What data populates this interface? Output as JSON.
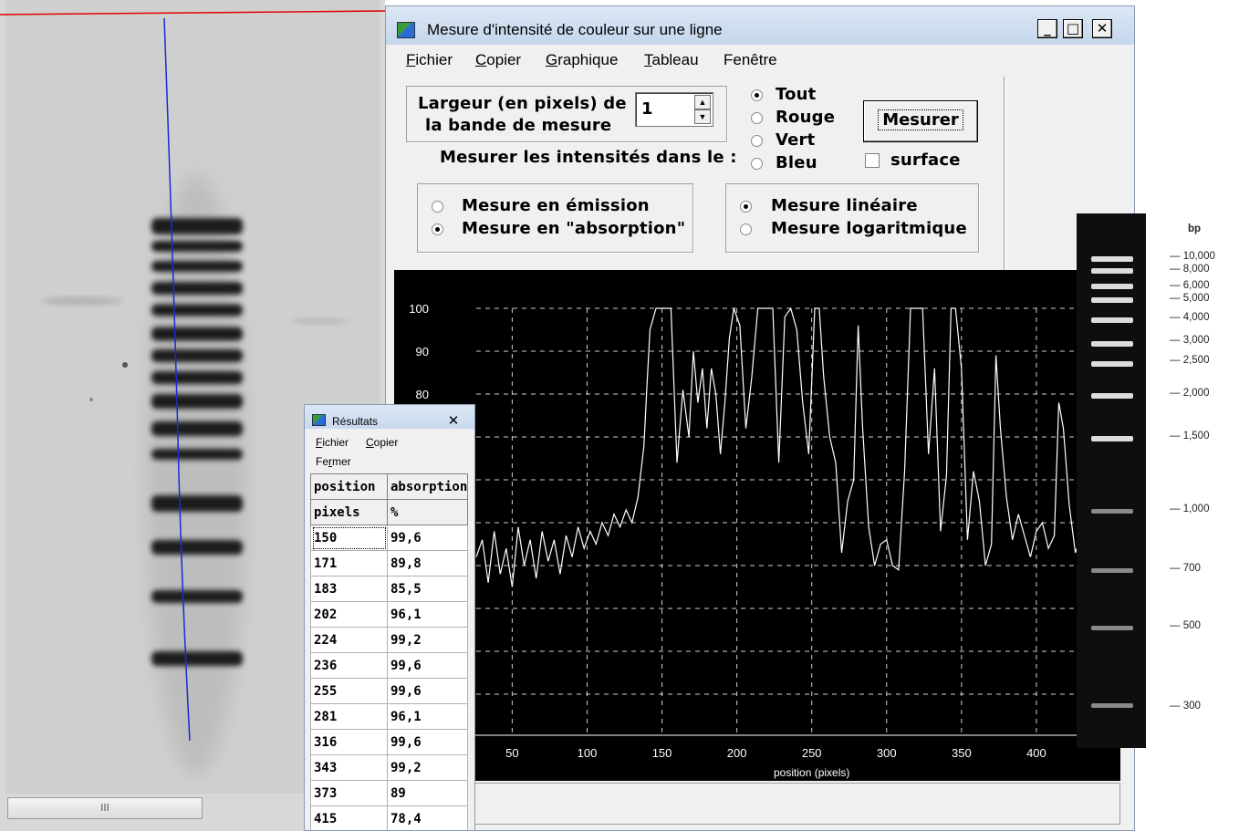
{
  "main_window": {
    "title": "Mesure d'intensité de couleur sur une ligne",
    "buttons": {
      "minimize": "_",
      "maximize": "□",
      "close": "✕"
    },
    "menu": [
      {
        "accel": "F",
        "rest": "ichier"
      },
      {
        "accel": "C",
        "rest": "opier"
      },
      {
        "accel": "G",
        "rest": "raphique"
      },
      {
        "accel": "T",
        "rest": "ableau"
      },
      {
        "accel": "",
        "rest": "Fenêtre"
      }
    ],
    "width_label_line1": "Largeur (en pixels) de",
    "width_label_line2": "la bande de mesure",
    "width_value": "1",
    "measure_in_label": "Mesurer les intensités dans le :",
    "channels": [
      {
        "label": "Tout",
        "selected": true
      },
      {
        "label": "Rouge",
        "selected": false
      },
      {
        "label": "Vert",
        "selected": false
      },
      {
        "label": "Bleu",
        "selected": false
      }
    ],
    "measure_button": "Mesurer",
    "surface_label": "surface",
    "surface_checked": false,
    "mode_options": [
      {
        "label": "Mesure en émission",
        "selected": false
      },
      {
        "label": "Mesure en \"absorption\"",
        "selected": true
      }
    ],
    "scale_options": [
      {
        "label": "Mesure linéaire",
        "selected": true
      },
      {
        "label": "Mesure logaritmique",
        "selected": false
      }
    ]
  },
  "chart_data": {
    "type": "line",
    "xlabel": "position (pixels)",
    "ylabel": "",
    "x_ticks": [
      50,
      100,
      150,
      200,
      250,
      300,
      350,
      400
    ],
    "y_ticks": [
      80,
      90,
      100
    ],
    "xlim": [
      26,
      450
    ],
    "ylim": [
      0,
      100
    ],
    "grid": true,
    "series": [
      {
        "x": [
          26,
          30,
          34,
          38,
          42,
          46,
          50,
          54,
          58,
          62,
          66,
          70,
          74,
          78,
          82,
          86,
          90,
          94,
          98,
          102,
          106,
          110,
          114,
          118,
          122,
          126,
          130,
          134,
          138,
          140,
          142,
          146,
          150,
          152,
          156,
          160,
          164,
          168,
          171,
          174,
          177,
          180,
          183,
          186,
          189,
          192,
          195,
          198,
          202,
          206,
          210,
          214,
          218,
          222,
          224,
          228,
          232,
          236,
          240,
          244,
          248,
          252,
          255,
          258,
          262,
          266,
          270,
          274,
          278,
          281,
          284,
          288,
          292,
          296,
          300,
          304,
          308,
          312,
          316,
          320,
          324,
          328,
          332,
          336,
          340,
          343,
          346,
          350,
          354,
          358,
          362,
          366,
          370,
          373,
          376,
          380,
          384,
          388,
          392,
          396,
          400,
          404,
          408,
          412,
          415,
          418,
          422,
          426,
          430,
          434,
          438,
          442,
          446,
          450
        ],
        "y": [
          42,
          46,
          36,
          48,
          38,
          44,
          35,
          49,
          40,
          46,
          37,
          48,
          41,
          46,
          38,
          47,
          42,
          49,
          44,
          48,
          45,
          50,
          47,
          52,
          49,
          53,
          50,
          56,
          68,
          82,
          95,
          100,
          100,
          100,
          100,
          64,
          81,
          70,
          90,
          78,
          86,
          72,
          86,
          80,
          66,
          78,
          93,
          100,
          96,
          72,
          84,
          100,
          100,
          100,
          100,
          64,
          98,
          100,
          95,
          78,
          66,
          100,
          100,
          84,
          70,
          64,
          43,
          55,
          60,
          96,
          72,
          49,
          40,
          45,
          46,
          40,
          39,
          62,
          100,
          100,
          100,
          66,
          86,
          48,
          61,
          100,
          100,
          86,
          46,
          62,
          55,
          40,
          45,
          89,
          72,
          56,
          46,
          52,
          47,
          42,
          48,
          50,
          44,
          47,
          78,
          72,
          54,
          43,
          47,
          43,
          38,
          44,
          40,
          38
        ]
      }
    ]
  },
  "results": {
    "title": "Résultats",
    "close": "✕",
    "menu": [
      {
        "accel": "F",
        "rest": "ichier"
      },
      {
        "accel": "C",
        "rest": "opier"
      }
    ],
    "menu_second": {
      "pre": "Fe",
      "accel": "r",
      "rest": "mer"
    },
    "headers": [
      "position",
      "absorption"
    ],
    "units": [
      "pixels",
      "%"
    ],
    "rows": [
      [
        "150",
        "99,6"
      ],
      [
        "171",
        "89,8"
      ],
      [
        "183",
        "85,5"
      ],
      [
        "202",
        "96,1"
      ],
      [
        "224",
        "99,2"
      ],
      [
        "236",
        "99,6"
      ],
      [
        "255",
        "99,6"
      ],
      [
        "281",
        "96,1"
      ],
      [
        "316",
        "99,6"
      ],
      [
        "343",
        "99,2"
      ],
      [
        "373",
        "89"
      ],
      [
        "415",
        "78,4"
      ]
    ]
  },
  "gel": {
    "scroll_grip": "III"
  },
  "ladder": {
    "unit": "bp",
    "labels": [
      "10,000",
      "8,000",
      "6,000",
      "5,000",
      "4,000",
      "3,000",
      "2,500",
      "2,000",
      "1,500",
      "1,000",
      "700",
      "500",
      "300"
    ]
  },
  "colors": {
    "line_red": "#e00000",
    "line_blue": "#1a2ad8",
    "plot_bg": "#000000",
    "plot_line": "#ffffff",
    "titlebar": "#c9d9ee"
  }
}
